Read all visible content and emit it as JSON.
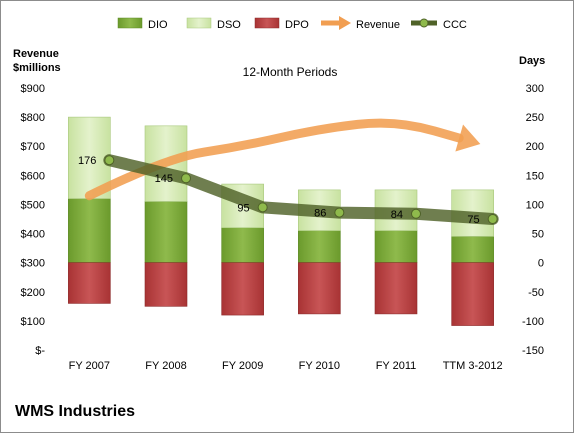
{
  "chart_data": {
    "type": "bar",
    "title": "12-Month Periods",
    "company": "WMS Industries",
    "left_axis": {
      "label_line1": "Revenue",
      "label_line2": "$millions",
      "min": 0,
      "max": 900,
      "step": 100,
      "tick_labels": [
        "$-",
        "$100",
        "$200",
        "$300",
        "$400",
        "$500",
        "$600",
        "$700",
        "$800",
        "$900"
      ]
    },
    "right_axis": {
      "label": "Days",
      "min": -150,
      "max": 300,
      "step": 50,
      "tick_labels": [
        "-150",
        "-100",
        "-50",
        "0",
        "50",
        "100",
        "150",
        "200",
        "250",
        "300"
      ]
    },
    "categories": [
      "FY 2007",
      "FY 2008",
      "FY 2009",
      "FY 2010",
      "FY 2011",
      "TTM 3-2012"
    ],
    "series": [
      {
        "name": "DIO",
        "type": "stacked-bar",
        "axis": "days",
        "color": "#77a233",
        "values": [
          110,
          105,
          60,
          55,
          55,
          45
        ]
      },
      {
        "name": "DSO",
        "type": "stacked-bar",
        "axis": "days",
        "color": "#d4eab0",
        "values": [
          140,
          130,
          75,
          70,
          70,
          80
        ]
      },
      {
        "name": "DPO",
        "type": "stacked-bar-negative",
        "axis": "days",
        "color": "#b73c3d",
        "values": [
          70,
          75,
          90,
          88,
          88,
          108
        ]
      },
      {
        "name": "Revenue",
        "type": "arrow-trend",
        "axis": "revenue",
        "color": "#f19e51",
        "values": [
          530,
          660,
          700,
          760,
          790,
          715
        ]
      },
      {
        "name": "CCC",
        "type": "line",
        "axis": "days",
        "color": "#4f6228",
        "values": [
          176,
          145,
          95,
          86,
          84,
          75
        ],
        "labels": [
          "176",
          "145",
          "95",
          "86",
          "84",
          "75"
        ]
      }
    ],
    "legend": {
      "position": "top",
      "entries": [
        "DIO",
        "DSO",
        "DPO",
        "Revenue",
        "CCC"
      ]
    },
    "grid": false
  }
}
